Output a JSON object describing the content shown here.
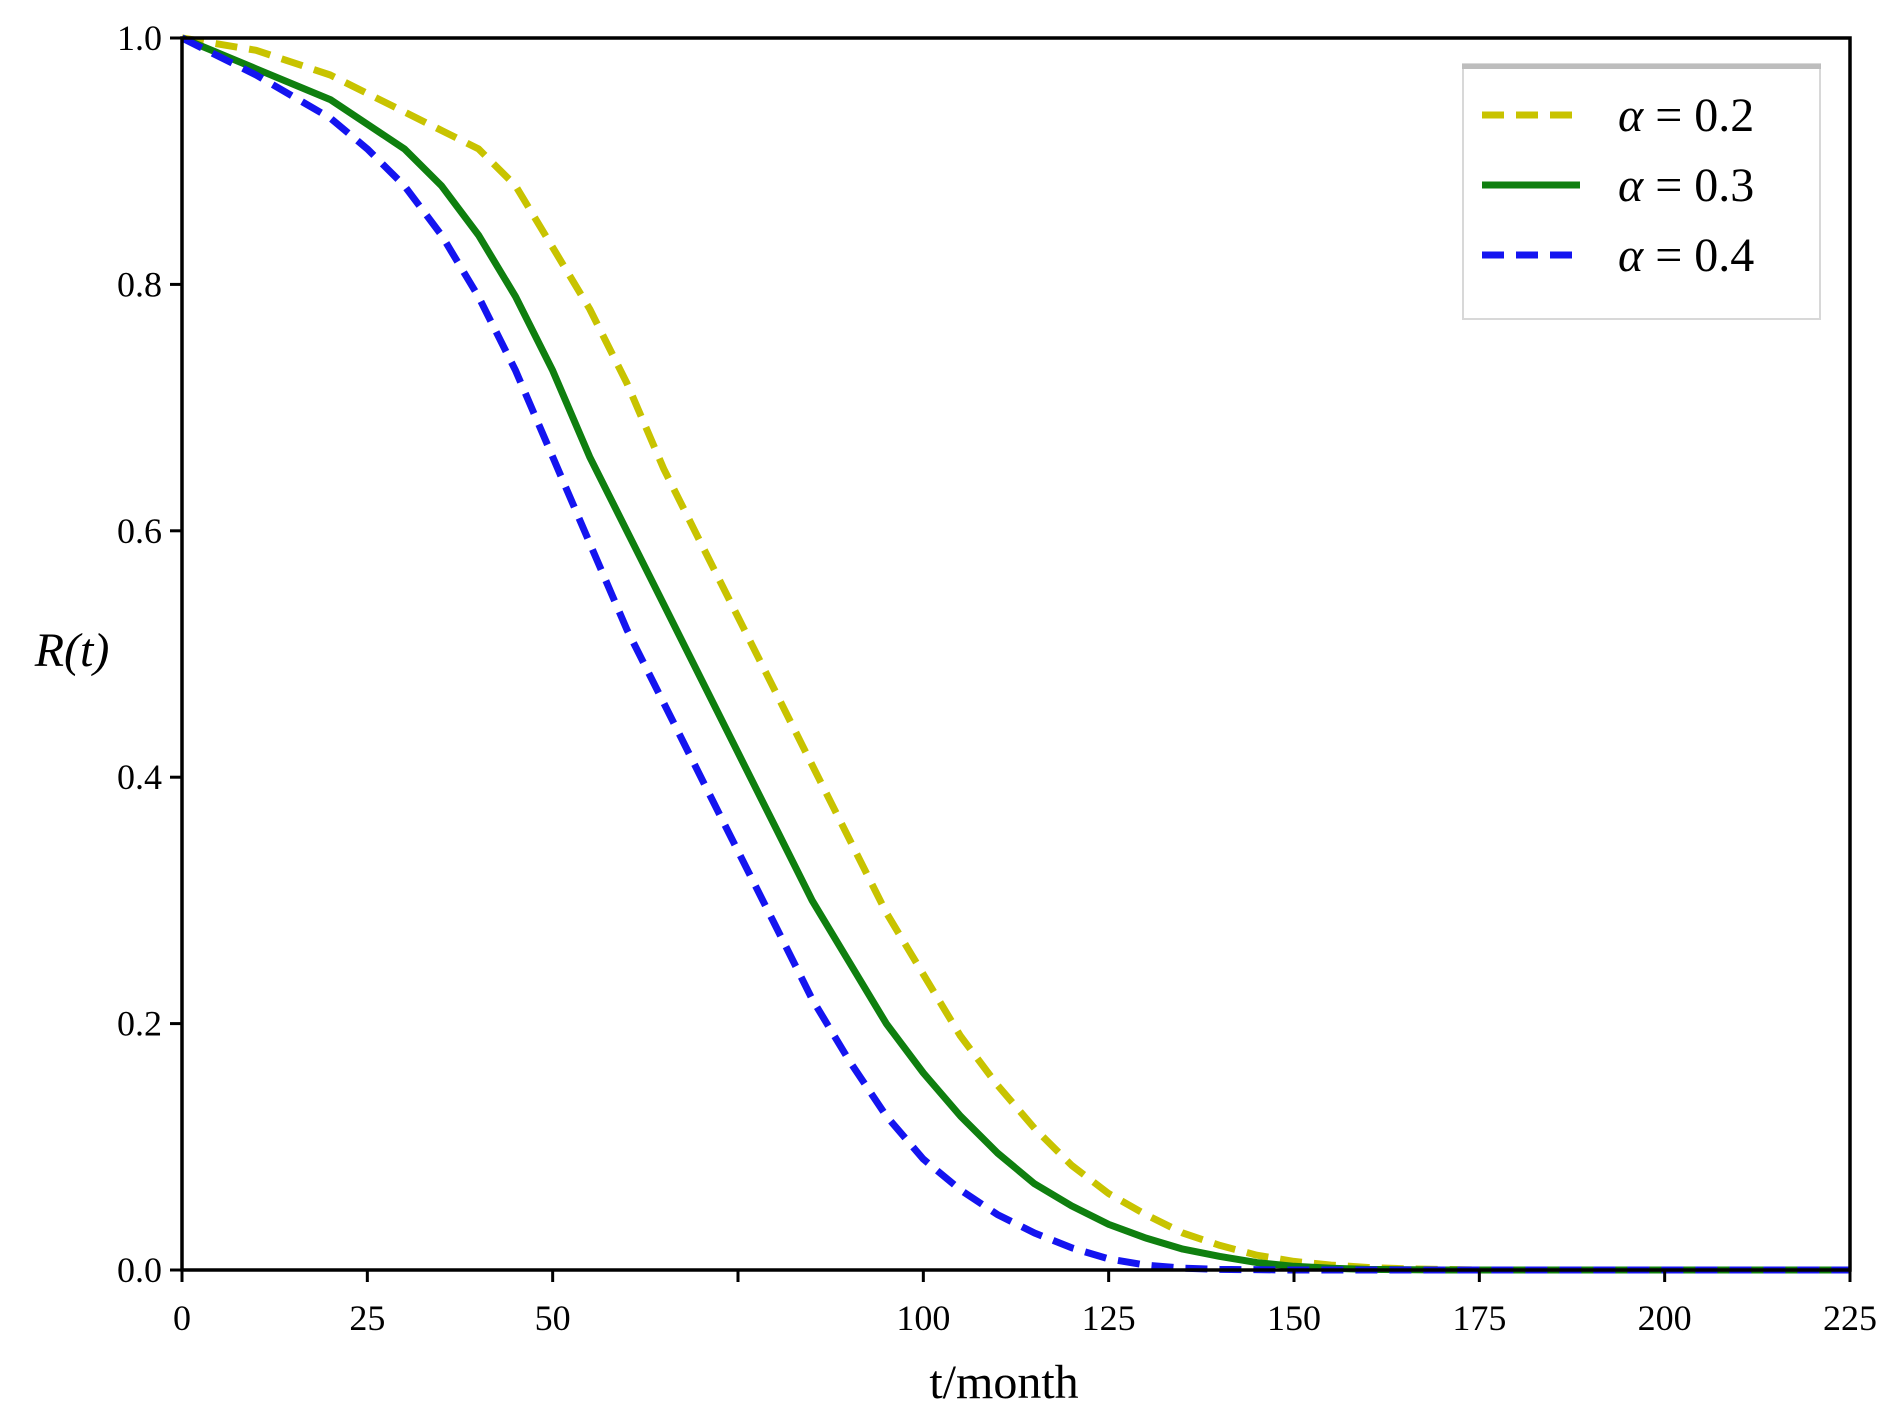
{
  "chart_data": {
    "type": "line",
    "xlabel": "t/month",
    "ylabel": "R(t)",
    "xlim": [
      0,
      225
    ],
    "ylim": [
      0,
      1.0
    ],
    "x_ticks": [
      0,
      25,
      50,
      75,
      100,
      125,
      150,
      175,
      200,
      225
    ],
    "y_ticks": [
      0.0,
      0.2,
      0.4,
      0.6,
      0.8,
      1.0
    ],
    "x_tick_labels": [
      "0",
      "25",
      "50",
      "100",
      "125",
      "150",
      "175",
      "200",
      "225"
    ],
    "x_tick_label_values": [
      0,
      25,
      50,
      100,
      125,
      150,
      175,
      200,
      225
    ],
    "y_tick_labels": [
      "0.0",
      "0.2",
      "0.4",
      "0.6",
      "0.8",
      "1.0"
    ],
    "grid": false,
    "legend_position": "top-right",
    "series": [
      {
        "name": "α = 0.2",
        "alpha_symbol": "α",
        "alpha_value": "0.2",
        "color": "#c8c300",
        "style": "dashed",
        "x": [
          0,
          10,
          20,
          30,
          40,
          45,
          50,
          55,
          60,
          65,
          70,
          75,
          80,
          85,
          90,
          95,
          100,
          105,
          110,
          115,
          120,
          125,
          130,
          135,
          140,
          145,
          150,
          155,
          160,
          165,
          170,
          175,
          190,
          225
        ],
        "y": [
          1.0,
          0.99,
          0.97,
          0.94,
          0.91,
          0.88,
          0.83,
          0.78,
          0.72,
          0.65,
          0.59,
          0.53,
          0.47,
          0.41,
          0.35,
          0.29,
          0.24,
          0.19,
          0.15,
          0.115,
          0.085,
          0.062,
          0.045,
          0.03,
          0.02,
          0.012,
          0.007,
          0.004,
          0.002,
          0.001,
          0.0005,
          0.0,
          0.0,
          0.0
        ]
      },
      {
        "name": "α = 0.3",
        "alpha_symbol": "α",
        "alpha_value": "0.3",
        "color": "#0f7f0f",
        "style": "solid",
        "x": [
          0,
          10,
          20,
          30,
          35,
          40,
          45,
          50,
          55,
          60,
          65,
          70,
          75,
          80,
          85,
          90,
          95,
          100,
          105,
          110,
          115,
          120,
          125,
          130,
          135,
          140,
          145,
          150,
          155,
          160,
          170,
          225
        ],
        "y": [
          1.0,
          0.975,
          0.95,
          0.91,
          0.88,
          0.84,
          0.79,
          0.73,
          0.66,
          0.6,
          0.54,
          0.48,
          0.42,
          0.36,
          0.3,
          0.25,
          0.2,
          0.16,
          0.125,
          0.095,
          0.07,
          0.052,
          0.037,
          0.026,
          0.017,
          0.011,
          0.006,
          0.003,
          0.0015,
          0.0005,
          0.0,
          0.0
        ]
      },
      {
        "name": "α = 0.4",
        "alpha_symbol": "α",
        "alpha_value": "0.4",
        "color": "#1414f0",
        "style": "dashed",
        "x": [
          0,
          10,
          20,
          25,
          30,
          35,
          40,
          45,
          50,
          55,
          60,
          65,
          70,
          75,
          80,
          85,
          90,
          95,
          100,
          105,
          110,
          115,
          120,
          125,
          130,
          135,
          140,
          150,
          225
        ],
        "y": [
          1.0,
          0.97,
          0.935,
          0.91,
          0.88,
          0.84,
          0.79,
          0.73,
          0.66,
          0.59,
          0.52,
          0.46,
          0.4,
          0.34,
          0.28,
          0.22,
          0.17,
          0.125,
          0.09,
          0.065,
          0.045,
          0.03,
          0.018,
          0.009,
          0.004,
          0.0015,
          0.0005,
          0.0,
          0.0
        ]
      }
    ]
  }
}
